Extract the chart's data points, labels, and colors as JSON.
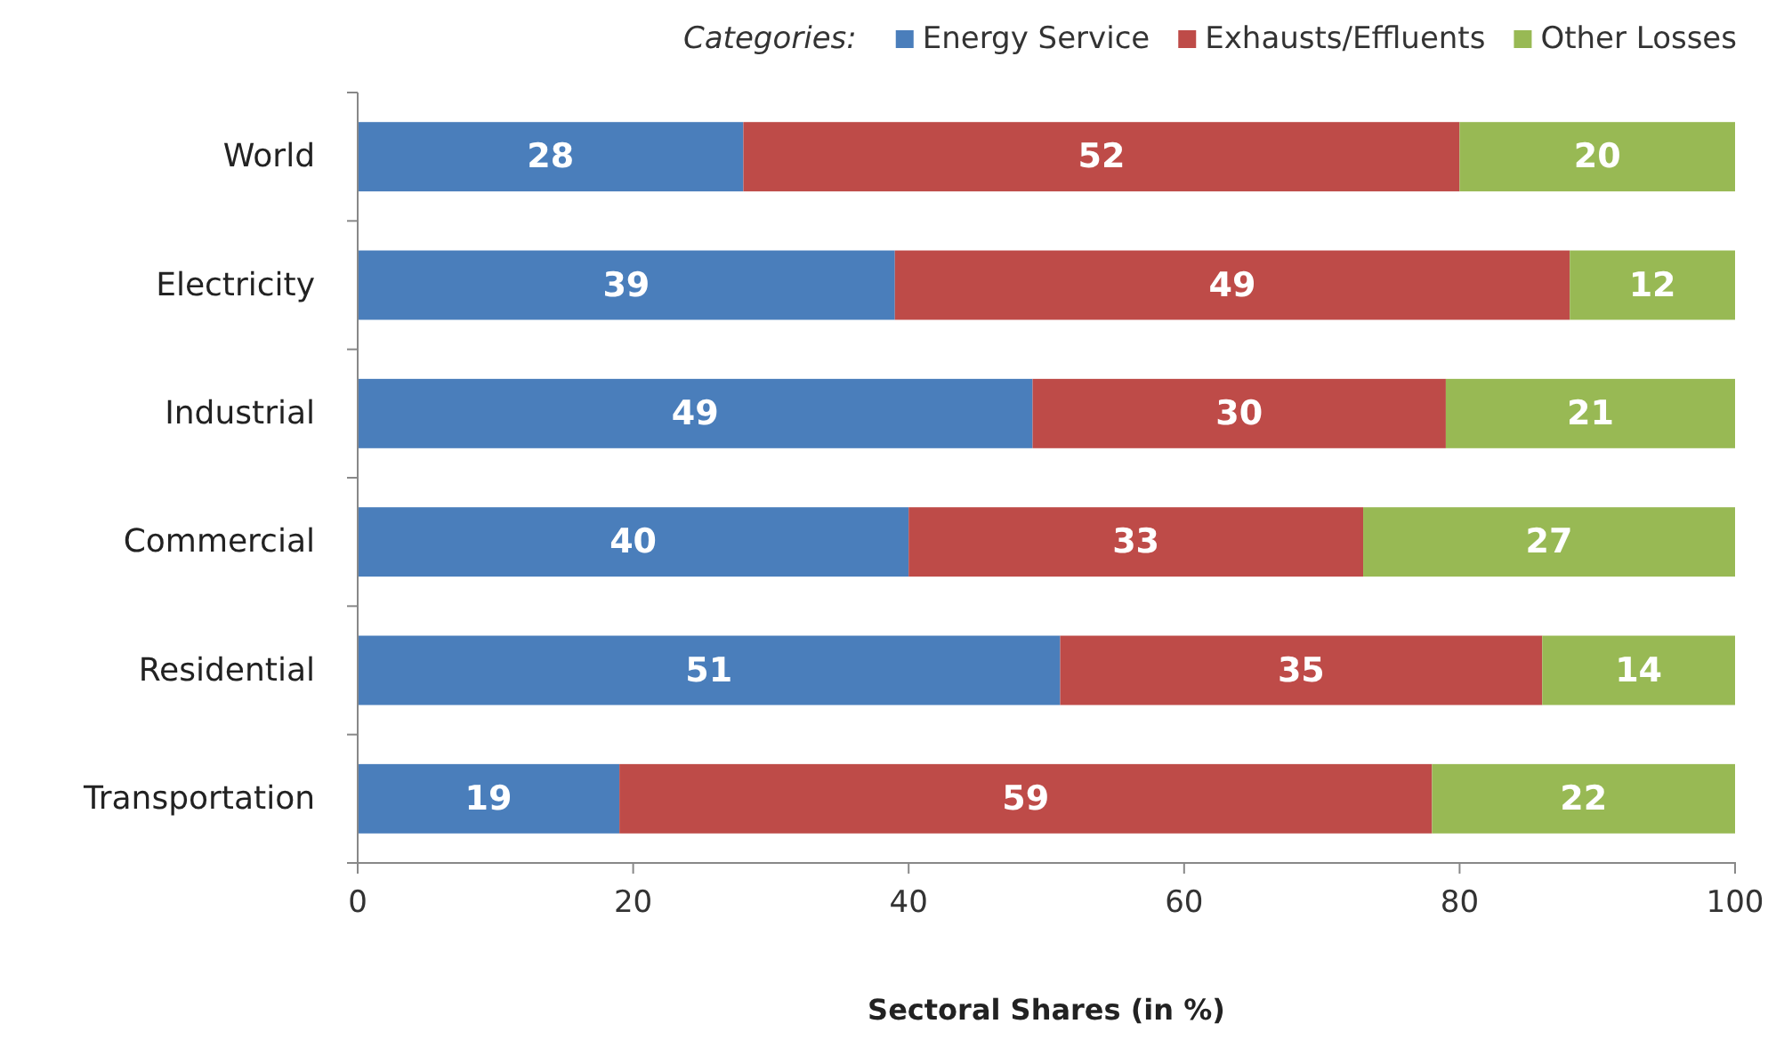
{
  "chart_data": {
    "type": "bar",
    "orientation": "horizontal",
    "stacked": true,
    "data_labels": true,
    "legend_title": "Categories:",
    "legend": "top right",
    "xlabel": "Sectoral Shares (in %)",
    "categories": [
      "World",
      "Electricity",
      "Industrial",
      "Commercial",
      "Residential",
      "Transportation"
    ],
    "series": [
      {
        "name": "Energy Service",
        "color": "#4a7ebb",
        "values": [
          28,
          39,
          49,
          40,
          51,
          19
        ]
      },
      {
        "name": "Exhausts/Effluents",
        "color": "#be4b48",
        "values": [
          52,
          49,
          30,
          33,
          35,
          59
        ]
      },
      {
        "name": "Other Losses",
        "color": "#98b954",
        "values": [
          20,
          12,
          21,
          27,
          14,
          22
        ]
      }
    ],
    "xlim": [
      0,
      100
    ],
    "xticks": [
      0,
      20,
      40,
      60,
      80,
      100
    ],
    "grid": false
  }
}
